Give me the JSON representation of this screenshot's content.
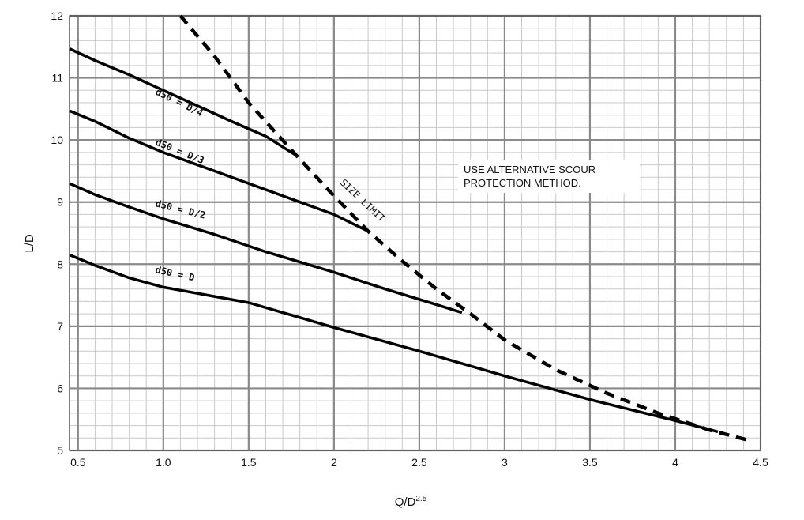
{
  "chart_data": {
    "type": "line",
    "title": "",
    "xlabel": "Q/D",
    "xlabel_sup": "2.5",
    "ylabel": "L/D",
    "xlim": [
      0.45,
      4.5
    ],
    "ylim": [
      5,
      12
    ],
    "x_ticks": [
      0.5,
      1.0,
      1.5,
      2,
      2.5,
      3,
      3.5,
      4,
      4.5
    ],
    "x_tick_labels": [
      "0.5",
      "1.0",
      "1.5",
      "2",
      "2.5",
      "3",
      "3.5",
      "4",
      "4.5"
    ],
    "y_ticks": [
      5,
      6,
      7,
      8,
      9,
      10,
      11,
      12
    ],
    "y_tick_labels": [
      "5",
      "6",
      "7",
      "8",
      "9",
      "10",
      "11",
      "12"
    ],
    "grid": true,
    "series": [
      {
        "name": "d50 = D/4",
        "style": "solid",
        "x": [
          0.45,
          0.6,
          0.8,
          1.0,
          1.2,
          1.4,
          1.6,
          1.78
        ],
        "y": [
          11.47,
          11.28,
          11.05,
          10.8,
          10.55,
          10.3,
          10.06,
          9.75
        ]
      },
      {
        "name": "d50 = D/3",
        "style": "solid",
        "x": [
          0.45,
          0.6,
          0.8,
          1.0,
          1.2,
          1.5,
          1.8,
          2.0,
          2.2
        ],
        "y": [
          10.47,
          10.3,
          10.03,
          9.8,
          9.6,
          9.3,
          9.0,
          8.8,
          8.53
        ]
      },
      {
        "name": "d50 = D/2",
        "style": "solid",
        "x": [
          0.45,
          0.6,
          0.8,
          1.0,
          1.3,
          1.6,
          2.0,
          2.3,
          2.6,
          2.75
        ],
        "y": [
          9.3,
          9.12,
          8.92,
          8.73,
          8.48,
          8.2,
          7.87,
          7.6,
          7.35,
          7.22
        ]
      },
      {
        "name": "d50 = D",
        "style": "solid",
        "x": [
          0.45,
          0.6,
          0.8,
          1.0,
          1.5,
          2.0,
          2.5,
          3.0,
          3.5,
          4.0,
          4.25
        ],
        "y": [
          8.15,
          7.98,
          7.78,
          7.63,
          7.38,
          6.98,
          6.6,
          6.2,
          5.82,
          5.48,
          5.3
        ]
      },
      {
        "name": "SIZE LIMIT",
        "style": "dashed",
        "x": [
          1.1,
          1.3,
          1.5,
          1.78,
          2.0,
          2.2,
          2.4,
          2.6,
          2.8,
          3.0,
          3.3,
          3.6,
          3.9,
          4.2,
          4.45
        ],
        "y": [
          12,
          11.35,
          10.6,
          9.75,
          9.1,
          8.53,
          8.05,
          7.6,
          7.2,
          6.78,
          6.3,
          5.92,
          5.6,
          5.33,
          5.15
        ]
      }
    ],
    "curve_labels": [
      "d50 = D/4",
      "d50 = D/3",
      "d50 = D/2",
      "d50 = D"
    ],
    "limit_label": "SIZE LIMIT",
    "annotation_lines": [
      "USE ALTERNATIVE SCOUR",
      "PROTECTION METHOD."
    ]
  }
}
